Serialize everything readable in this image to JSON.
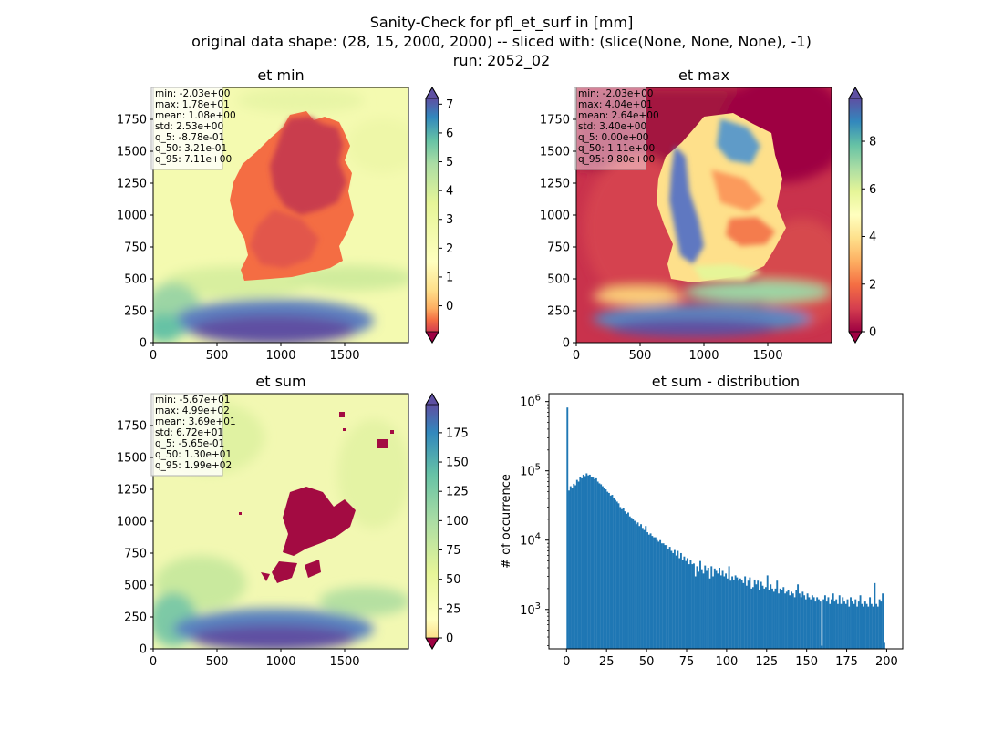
{
  "figure": {
    "title_lines": [
      "Sanity-Check for pfl_et_surf in [mm]",
      "original data shape: (28, 15, 2000, 2000) -- sliced with: (slice(None, None, None), -1)",
      "run: 2052_02"
    ]
  },
  "chart_data": [
    {
      "type": "heatmap",
      "title": "et min",
      "colormap": "Spectral",
      "xlim": [
        0,
        2000
      ],
      "ylim": [
        0,
        2000
      ],
      "x_ticks": [
        0,
        500,
        1000,
        1500
      ],
      "y_ticks": [
        0,
        250,
        500,
        750,
        1000,
        1250,
        1500,
        1750
      ],
      "colorbar": {
        "range": [
          -0.9,
          7.2
        ],
        "ticks": [
          0,
          1,
          2,
          3,
          4,
          5,
          6,
          7
        ],
        "extend": "both"
      },
      "stats": [
        "min: -2.03e+00",
        "max: 1.78e+01",
        "mean: 1.08e+00",
        "std: 2.53e+00",
        "q_5: -8.78e-01",
        "q_50: 3.21e-01",
        "q_95: 7.11e+00"
      ]
    },
    {
      "type": "heatmap",
      "title": "et max",
      "colormap": "Spectral",
      "xlim": [
        0,
        2000
      ],
      "ylim": [
        0,
        2000
      ],
      "x_ticks": [
        0,
        500,
        1000,
        1500
      ],
      "y_ticks": [
        0,
        250,
        500,
        750,
        1000,
        1250,
        1500,
        1750
      ],
      "colorbar": {
        "range": [
          0,
          9.8
        ],
        "ticks": [
          0,
          2,
          4,
          6,
          8
        ],
        "extend": "both"
      },
      "stats": [
        "min: -2.03e+00",
        "max: 4.04e+01",
        "mean: 2.64e+00",
        "std: 3.40e+00",
        "q_5: 0.00e+00",
        "q_50: 1.11e+00",
        "q_95: 9.80e+00"
      ]
    },
    {
      "type": "heatmap",
      "title": "et sum",
      "colormap": "Spectral",
      "xlim": [
        0,
        2000
      ],
      "ylim": [
        0,
        2000
      ],
      "x_ticks": [
        0,
        500,
        1000,
        1500
      ],
      "y_ticks": [
        0,
        250,
        500,
        750,
        1000,
        1250,
        1500,
        1750
      ],
      "colorbar": {
        "range": [
          0,
          199
        ],
        "ticks": [
          0,
          25,
          50,
          75,
          100,
          125,
          150,
          175
        ],
        "extend": "both"
      },
      "stats": [
        "min: -5.67e+01",
        "max: 4.99e+02",
        "mean: 3.69e+01",
        "std: 6.72e+01",
        "q_5: -5.65e-01",
        "q_50: 1.30e+01",
        "q_95: 1.99e+02"
      ]
    },
    {
      "type": "bar",
      "title": "et sum - distribution",
      "ylabel": "# of occurrence",
      "yscale": "log",
      "xlim": [
        -11,
        210
      ],
      "ylim": [
        270,
        1300000
      ],
      "x_ticks": [
        0,
        25,
        50,
        75,
        100,
        125,
        150,
        175,
        200
      ],
      "y_ticks": [
        1000,
        10000,
        100000,
        1000000
      ],
      "y_tick_labels": [
        "10^3",
        "10^4",
        "10^5",
        "10^6"
      ],
      "bin_width": 1,
      "color": "#1f77b4",
      "x": [
        0,
        1,
        2,
        3,
        4,
        5,
        6,
        7,
        8,
        9,
        10,
        11,
        12,
        13,
        14,
        15,
        16,
        17,
        18,
        19,
        20,
        21,
        22,
        23,
        24,
        25,
        26,
        27,
        28,
        29,
        30,
        31,
        32,
        33,
        34,
        35,
        36,
        37,
        38,
        39,
        40,
        41,
        42,
        43,
        44,
        45,
        46,
        47,
        48,
        49,
        50,
        51,
        52,
        53,
        54,
        55,
        56,
        57,
        58,
        59,
        60,
        61,
        62,
        63,
        64,
        65,
        66,
        67,
        68,
        69,
        70,
        71,
        72,
        73,
        74,
        75,
        76,
        77,
        78,
        79,
        80,
        81,
        82,
        83,
        84,
        85,
        86,
        87,
        88,
        89,
        90,
        91,
        92,
        93,
        94,
        95,
        96,
        97,
        98,
        99,
        100,
        101,
        102,
        103,
        104,
        105,
        106,
        107,
        108,
        109,
        110,
        111,
        112,
        113,
        114,
        115,
        116,
        117,
        118,
        119,
        120,
        121,
        122,
        123,
        124,
        125,
        126,
        127,
        128,
        129,
        130,
        131,
        132,
        133,
        134,
        135,
        136,
        137,
        138,
        139,
        140,
        141,
        142,
        143,
        144,
        145,
        146,
        147,
        148,
        149,
        150,
        151,
        152,
        153,
        154,
        155,
        156,
        157,
        158,
        159,
        160,
        161,
        162,
        163,
        164,
        165,
        166,
        167,
        168,
        169,
        170,
        171,
        172,
        173,
        174,
        175,
        176,
        177,
        178,
        179,
        180,
        181,
        182,
        183,
        184,
        185,
        186,
        187,
        188,
        189,
        190,
        191,
        192,
        193,
        194,
        195,
        196,
        197,
        198
      ],
      "values": [
        820000,
        52000,
        60000,
        56000,
        65000,
        62000,
        74000,
        70000,
        82000,
        78000,
        88000,
        84000,
        92000,
        86000,
        88000,
        82000,
        80000,
        76000,
        78000,
        70000,
        66000,
        64000,
        60000,
        56000,
        54000,
        50000,
        48000,
        44000,
        45000,
        40000,
        38000,
        36000,
        34000,
        30000,
        28000,
        29000,
        26000,
        24000,
        25000,
        22000,
        21000,
        20000,
        19000,
        17000,
        18000,
        16000,
        17000,
        15000,
        14000,
        16000,
        13000,
        12000,
        12500,
        11500,
        11000,
        11000,
        10000,
        9500,
        10000,
        9000,
        9000,
        8500,
        8500,
        7500,
        8000,
        7000,
        6500,
        7200,
        6000,
        7000,
        5500,
        6500,
        5200,
        5800,
        5000,
        5500,
        4500,
        5200,
        4500,
        4600,
        3000,
        4200,
        3500,
        5000,
        3800,
        3300,
        4300,
        3600,
        4000,
        2800,
        4200,
        3000,
        3900,
        3600,
        3300,
        4000,
        3100,
        3600,
        3000,
        3300,
        2800,
        4200,
        2600,
        3000,
        2700,
        3100,
        2900,
        2600,
        2800,
        2700,
        2400,
        3000,
        2200,
        2600,
        2900,
        2000,
        2100,
        2700,
        2300,
        2600,
        1900,
        2500,
        2200,
        2000,
        2100,
        3100,
        1900,
        2300,
        2000,
        1800,
        2000,
        2600,
        1700,
        2000,
        1900,
        2100,
        1700,
        1800,
        1900,
        1600,
        1800,
        1700,
        1500,
        1900,
        2300,
        1700,
        1500,
        1800,
        1600,
        1400,
        1700,
        1500,
        1400,
        1600,
        1500,
        1300,
        1500,
        1400,
        1300,
        300,
        1400,
        1600,
        1300,
        1500,
        1200,
        1400,
        1700,
        1300,
        1400,
        1200,
        1600,
        1200,
        1500,
        1300,
        1200,
        1400,
        1100,
        1500,
        1300,
        1200,
        1400,
        1100,
        1300,
        1600,
        1200,
        1100,
        1300,
        1200,
        1100,
        1500,
        1200,
        1100,
        2400,
        1200,
        1100,
        1400,
        1300,
        1700,
        330
      ]
    }
  ]
}
